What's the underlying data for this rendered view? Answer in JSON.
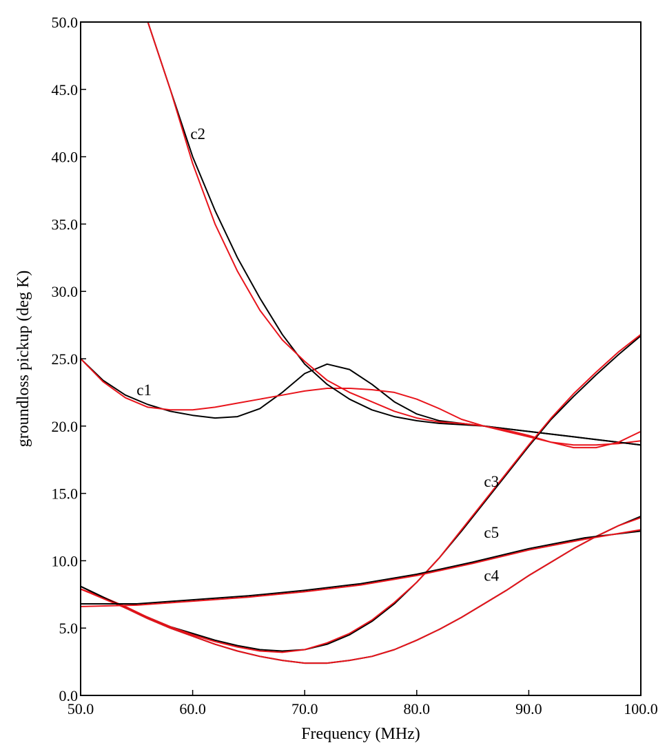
{
  "chart_data": {
    "type": "line",
    "xlabel": "Frequency (MHz)",
    "ylabel": "groundloss pickup (deg K)",
    "xlim": [
      50,
      100
    ],
    "ylim": [
      0,
      50
    ],
    "x_ticks": [
      "50.0",
      "60.0",
      "70.0",
      "80.0",
      "90.0",
      "100.0"
    ],
    "y_ticks": [
      "0.0",
      "5.0",
      "10.0",
      "15.0",
      "20.0",
      "25.0",
      "30.0",
      "35.0",
      "40.0",
      "45.0",
      "50.0"
    ],
    "grid": false,
    "colors": {
      "black_series": "#000000",
      "red_series": "#e8141b"
    },
    "series": [
      {
        "label": "c1",
        "color": "#000000",
        "x": [
          50,
          52,
          54,
          56,
          58,
          60,
          62,
          64,
          66,
          68,
          70,
          72,
          74,
          76,
          78,
          80,
          82,
          84,
          86,
          88,
          90,
          92,
          94,
          96,
          98,
          100
        ],
        "y": [
          25.0,
          23.4,
          22.3,
          21.6,
          21.1,
          20.8,
          20.6,
          20.7,
          21.3,
          22.5,
          23.9,
          24.6,
          24.2,
          23.1,
          21.8,
          20.9,
          20.4,
          20.2,
          20.0,
          19.8,
          19.6,
          19.4,
          19.2,
          19.0,
          18.8,
          18.6
        ]
      },
      {
        "label": "c1",
        "color": "#e8141b",
        "x": [
          50,
          52,
          54,
          56,
          58,
          60,
          62,
          64,
          66,
          68,
          70,
          72,
          74,
          76,
          78,
          80,
          82,
          84,
          86,
          88,
          90,
          92,
          94,
          96,
          98,
          100
        ],
        "y": [
          25.0,
          23.3,
          22.1,
          21.4,
          21.2,
          21.2,
          21.4,
          21.7,
          22.0,
          22.3,
          22.6,
          22.8,
          22.8,
          22.7,
          22.5,
          22.0,
          21.3,
          20.5,
          20.0,
          19.6,
          19.2,
          18.8,
          18.6,
          18.6,
          18.7,
          18.9
        ]
      },
      {
        "label": "c2",
        "color": "#000000",
        "x": [
          50,
          56,
          58,
          60,
          62,
          64,
          66,
          68,
          70,
          72,
          74,
          76,
          78,
          80,
          82,
          84,
          86,
          88,
          90,
          92,
          94,
          96,
          98,
          100
        ],
        "y": [
          50.0,
          50.0,
          45.0,
          40.0,
          36.0,
          32.5,
          29.5,
          26.8,
          24.6,
          23.1,
          22.0,
          21.2,
          20.7,
          20.4,
          20.2,
          20.1,
          20.0,
          19.8,
          19.6,
          19.4,
          19.2,
          19.0,
          18.8,
          18.6
        ]
      },
      {
        "label": "c2",
        "color": "#e8141b",
        "x": [
          50,
          56,
          58,
          60,
          62,
          64,
          66,
          68,
          70,
          72,
          74,
          76,
          78,
          80,
          82,
          84,
          86,
          88,
          90,
          92,
          94,
          96,
          98,
          100
        ],
        "y": [
          50.0,
          50.0,
          45.0,
          39.5,
          35.0,
          31.5,
          28.6,
          26.4,
          24.8,
          23.4,
          22.5,
          21.8,
          21.1,
          20.6,
          20.3,
          20.2,
          20.0,
          19.7,
          19.3,
          18.8,
          18.4,
          18.4,
          18.8,
          19.6
        ]
      },
      {
        "label": "c3",
        "color": "#000000",
        "x": [
          50,
          52,
          54,
          56,
          58,
          60,
          62,
          64,
          66,
          68,
          70,
          72,
          74,
          76,
          78,
          80,
          82,
          84,
          86,
          88,
          90,
          92,
          94,
          96,
          98,
          100
        ],
        "y": [
          8.1,
          7.3,
          6.5,
          5.8,
          5.1,
          4.6,
          4.1,
          3.7,
          3.4,
          3.3,
          3.4,
          3.8,
          4.5,
          5.5,
          6.8,
          8.4,
          10.2,
          12.2,
          14.3,
          16.4,
          18.5,
          20.5,
          22.2,
          23.8,
          25.3,
          26.7
        ]
      },
      {
        "label": "c3",
        "color": "#e8141b",
        "x": [
          50,
          52,
          54,
          56,
          58,
          60,
          62,
          64,
          66,
          68,
          70,
          72,
          74,
          76,
          78,
          80,
          82,
          84,
          86,
          88,
          90,
          92,
          94,
          96,
          98,
          100
        ],
        "y": [
          7.9,
          7.3,
          6.6,
          5.8,
          5.1,
          4.5,
          4.0,
          3.6,
          3.3,
          3.2,
          3.4,
          3.9,
          4.6,
          5.6,
          6.9,
          8.4,
          10.2,
          12.3,
          14.4,
          16.5,
          18.6,
          20.6,
          22.4,
          24.0,
          25.5,
          26.8
        ]
      },
      {
        "label": "c4",
        "color": "#000000",
        "x": [
          50,
          52,
          54,
          56,
          58,
          60,
          62,
          64,
          66,
          68,
          70,
          72,
          74,
          76,
          78,
          80,
          82,
          84,
          86,
          88,
          90,
          92,
          94,
          96,
          98,
          100
        ],
        "y": [
          8.1,
          7.3,
          6.5,
          5.7,
          5.0,
          4.4,
          3.8,
          3.3,
          2.9,
          2.6,
          2.4,
          2.4,
          2.6,
          2.9,
          3.4,
          4.1,
          4.9,
          5.8,
          6.8,
          7.8,
          8.9,
          9.9,
          10.9,
          11.8,
          12.6,
          13.3
        ]
      },
      {
        "label": "c4",
        "color": "#e8141b",
        "x": [
          50,
          52,
          54,
          56,
          58,
          60,
          62,
          64,
          66,
          68,
          70,
          72,
          74,
          76,
          78,
          80,
          82,
          84,
          86,
          88,
          90,
          92,
          94,
          96,
          98,
          100
        ],
        "y": [
          7.9,
          7.2,
          6.5,
          5.7,
          5.0,
          4.4,
          3.8,
          3.3,
          2.9,
          2.6,
          2.4,
          2.4,
          2.6,
          2.9,
          3.4,
          4.1,
          4.9,
          5.8,
          6.8,
          7.8,
          8.9,
          9.9,
          10.9,
          11.8,
          12.6,
          13.2
        ]
      },
      {
        "label": "c5",
        "color": "#000000",
        "x": [
          50,
          55,
          60,
          65,
          70,
          75,
          80,
          85,
          90,
          95,
          100
        ],
        "y": [
          6.8,
          6.8,
          7.1,
          7.4,
          7.8,
          8.3,
          9.0,
          9.9,
          10.9,
          11.7,
          12.2
        ]
      },
      {
        "label": "c5",
        "color": "#e8141b",
        "x": [
          50,
          55,
          60,
          65,
          70,
          75,
          80,
          85,
          90,
          95,
          100
        ],
        "y": [
          6.6,
          6.7,
          7.0,
          7.3,
          7.7,
          8.2,
          8.9,
          9.8,
          10.8,
          11.6,
          12.3
        ]
      }
    ],
    "annotations": [
      {
        "text": "c1",
        "x": 55.0,
        "y": 22.3
      },
      {
        "text": "c2",
        "x": 59.8,
        "y": 41.3
      },
      {
        "text": "c3",
        "x": 86.0,
        "y": 15.5
      },
      {
        "text": "c5",
        "x": 86.0,
        "y": 11.7
      },
      {
        "text": "c4",
        "x": 86.0,
        "y": 8.5
      }
    ]
  }
}
